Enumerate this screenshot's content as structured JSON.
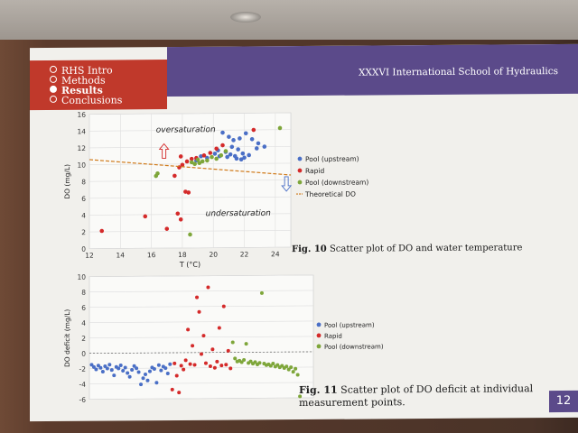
{
  "nav": [
    {
      "label": "RHS Intro",
      "active": false
    },
    {
      "label": "Methods",
      "active": false
    },
    {
      "label": "Results",
      "active": true
    },
    {
      "label": "Conclusions",
      "active": false
    }
  ],
  "header": {
    "conference": "XXXVI International School of Hydraulics"
  },
  "page_number": "12",
  "fig10": {
    "caption_bold": "Fig. 10",
    "caption_rest": " Scatter plot of DO and water temperature",
    "annotation_over": "oversaturation",
    "annotation_under": "undersaturation"
  },
  "fig11": {
    "caption_bold": "Fig. 11",
    "caption_rest": " Scatter plot of DO deficit at individual measurement points."
  },
  "colors": {
    "pool_up": "#4a6fc6",
    "rapid": "#d42a2a",
    "pool_down": "#7ea63a",
    "theoretical": "#d07a1a"
  },
  "chart_data": [
    {
      "type": "scatter",
      "title": "",
      "xlabel": "T (°C)",
      "ylabel": "DO (mg/L)",
      "xlim": [
        12,
        25
      ],
      "ylim": [
        0,
        16
      ],
      "xticks": [
        12,
        14,
        16,
        18,
        20,
        22,
        24
      ],
      "yticks": [
        0,
        2,
        4,
        6,
        8,
        10,
        12,
        14,
        16
      ],
      "legend": "right",
      "series": [
        {
          "name": "Pool (upstream)",
          "color": "#4a6fc6",
          "points": [
            [
              20.6,
              13.7
            ],
            [
              21.0,
              13.2
            ],
            [
              21.3,
              12.8
            ],
            [
              21.7,
              13.0
            ],
            [
              22.1,
              13.6
            ],
            [
              22.5,
              12.9
            ],
            [
              22.9,
              12.4
            ],
            [
              23.3,
              12.0
            ],
            [
              21.2,
              12.0
            ],
            [
              21.6,
              11.7
            ],
            [
              20.8,
              11.4
            ],
            [
              21.1,
              11.1
            ],
            [
              21.4,
              10.9
            ],
            [
              21.9,
              11.2
            ],
            [
              22.3,
              11.0
            ],
            [
              20.9,
              10.8
            ],
            [
              21.5,
              10.6
            ],
            [
              22.0,
              10.7
            ],
            [
              19.2,
              10.9
            ],
            [
              19.6,
              10.7
            ],
            [
              20.1,
              11.2
            ],
            [
              20.4,
              10.9
            ],
            [
              18.9,
              10.4
            ],
            [
              22.8,
              11.8
            ],
            [
              21.8,
              10.5
            ],
            [
              20.3,
              11.6
            ]
          ]
        },
        {
          "name": "Rapid",
          "color": "#d42a2a",
          "points": [
            [
              12.8,
              2.1
            ],
            [
              15.6,
              3.8
            ],
            [
              17.0,
              2.3
            ],
            [
              17.7,
              4.1
            ],
            [
              17.9,
              3.4
            ],
            [
              18.2,
              6.7
            ],
            [
              18.4,
              6.6
            ],
            [
              17.5,
              8.6
            ],
            [
              17.8,
              9.6
            ],
            [
              18.0,
              9.9
            ],
            [
              18.3,
              10.3
            ],
            [
              18.6,
              10.6
            ],
            [
              18.9,
              10.7
            ],
            [
              19.4,
              11.0
            ],
            [
              19.8,
              11.3
            ],
            [
              20.2,
              11.8
            ],
            [
              20.6,
              12.2
            ],
            [
              22.6,
              14.0
            ],
            [
              17.9,
              10.9
            ]
          ]
        },
        {
          "name": "Pool (downstream)",
          "color": "#7ea63a",
          "points": [
            [
              16.3,
              8.6
            ],
            [
              16.4,
              8.9
            ],
            [
              18.5,
              1.6
            ],
            [
              18.6,
              10.2
            ],
            [
              18.8,
              10.0
            ],
            [
              19.0,
              10.5
            ],
            [
              19.3,
              10.3
            ],
            [
              19.6,
              10.4
            ],
            [
              19.9,
              10.8
            ],
            [
              20.2,
              10.6
            ],
            [
              20.5,
              11.0
            ],
            [
              20.8,
              11.5
            ],
            [
              24.3,
              14.2
            ],
            [
              19.1,
              10.1
            ]
          ]
        },
        {
          "name": "Theoretical DO",
          "color": "#d07a1a",
          "line": true,
          "dashed": true,
          "points": [
            [
              12,
              10.6
            ],
            [
              25,
              8.6
            ]
          ]
        }
      ]
    },
    {
      "type": "scatter",
      "title": "",
      "xlabel": "",
      "ylabel": "DO deficit (mg/L)",
      "ylim": [
        -6,
        10
      ],
      "yticks": [
        -6,
        -4,
        -2,
        0,
        2,
        4,
        6,
        8,
        10
      ],
      "xlim": [
        0,
        100
      ],
      "legend": "right",
      "series": [
        {
          "name": "Pool (upstream)",
          "color": "#4a6fc6",
          "points": [
            [
              1,
              -1.5
            ],
            [
              2,
              -1.8
            ],
            [
              3,
              -2.1
            ],
            [
              4,
              -1.6
            ],
            [
              5,
              -1.9
            ],
            [
              6,
              -2.4
            ],
            [
              7,
              -1.7
            ],
            [
              8,
              -2.0
            ],
            [
              9,
              -1.5
            ],
            [
              10,
              -2.2
            ],
            [
              11,
              -2.9
            ],
            [
              12,
              -1.8
            ],
            [
              13,
              -2.0
            ],
            [
              14,
              -1.6
            ],
            [
              15,
              -2.3
            ],
            [
              16,
              -1.9
            ],
            [
              17,
              -2.6
            ],
            [
              18,
              -3.1
            ],
            [
              19,
              -2.2
            ],
            [
              20,
              -1.7
            ],
            [
              21,
              -2.0
            ],
            [
              22,
              -2.5
            ],
            [
              23,
              -4.1
            ],
            [
              24,
              -3.3
            ],
            [
              25,
              -2.8
            ],
            [
              26,
              -3.6
            ],
            [
              27,
              -2.4
            ],
            [
              28,
              -1.9
            ],
            [
              29,
              -2.1
            ],
            [
              30,
              -3.9
            ],
            [
              31,
              -1.6
            ],
            [
              32,
              -2.3
            ],
            [
              33,
              -1.8
            ],
            [
              34,
              -2.0
            ],
            [
              35,
              -2.7
            ],
            [
              36,
              -1.5
            ]
          ]
        },
        {
          "name": "Rapid",
          "color": "#d42a2a",
          "points": [
            [
              37,
              -4.8
            ],
            [
              38,
              -1.4
            ],
            [
              39,
              -3.0
            ],
            [
              40,
              -5.2
            ],
            [
              41,
              -1.7
            ],
            [
              42,
              -2.2
            ],
            [
              43,
              -1.0
            ],
            [
              44,
              3.0
            ],
            [
              45,
              -1.5
            ],
            [
              46,
              0.9
            ],
            [
              47,
              -1.6
            ],
            [
              48,
              7.2
            ],
            [
              49,
              5.3
            ],
            [
              50,
              -0.2
            ],
            [
              51,
              2.2
            ],
            [
              52,
              -1.4
            ],
            [
              53,
              8.5
            ],
            [
              54,
              -1.8
            ],
            [
              55,
              0.4
            ],
            [
              56,
              -2.0
            ],
            [
              57,
              -1.2
            ],
            [
              58,
              3.2
            ],
            [
              59,
              -1.7
            ],
            [
              60,
              6.0
            ],
            [
              61,
              -1.6
            ],
            [
              62,
              0.2
            ],
            [
              63,
              -2.1
            ]
          ]
        },
        {
          "name": "Pool (downstream)",
          "color": "#7ea63a",
          "points": [
            [
              64,
              1.3
            ],
            [
              65,
              -0.8
            ],
            [
              66,
              -1.2
            ],
            [
              67,
              -1.1
            ],
            [
              68,
              -1.3
            ],
            [
              69,
              -1.0
            ],
            [
              70,
              1.1
            ],
            [
              71,
              -1.4
            ],
            [
              72,
              -1.2
            ],
            [
              73,
              -1.5
            ],
            [
              74,
              -1.3
            ],
            [
              75,
              -1.6
            ],
            [
              76,
              -1.4
            ],
            [
              77,
              7.7
            ],
            [
              78,
              -1.5
            ],
            [
              79,
              -1.7
            ],
            [
              80,
              -1.6
            ],
            [
              81,
              -1.8
            ],
            [
              82,
              -1.5
            ],
            [
              83,
              -1.9
            ],
            [
              84,
              -1.7
            ],
            [
              85,
              -2.0
            ],
            [
              86,
              -1.8
            ],
            [
              87,
              -2.1
            ],
            [
              88,
              -1.9
            ],
            [
              89,
              -2.3
            ],
            [
              90,
              -2.0
            ],
            [
              91,
              -2.6
            ],
            [
              92,
              -2.2
            ],
            [
              93,
              -3.0
            ],
            [
              94,
              -5.8
            ]
          ]
        }
      ]
    }
  ]
}
